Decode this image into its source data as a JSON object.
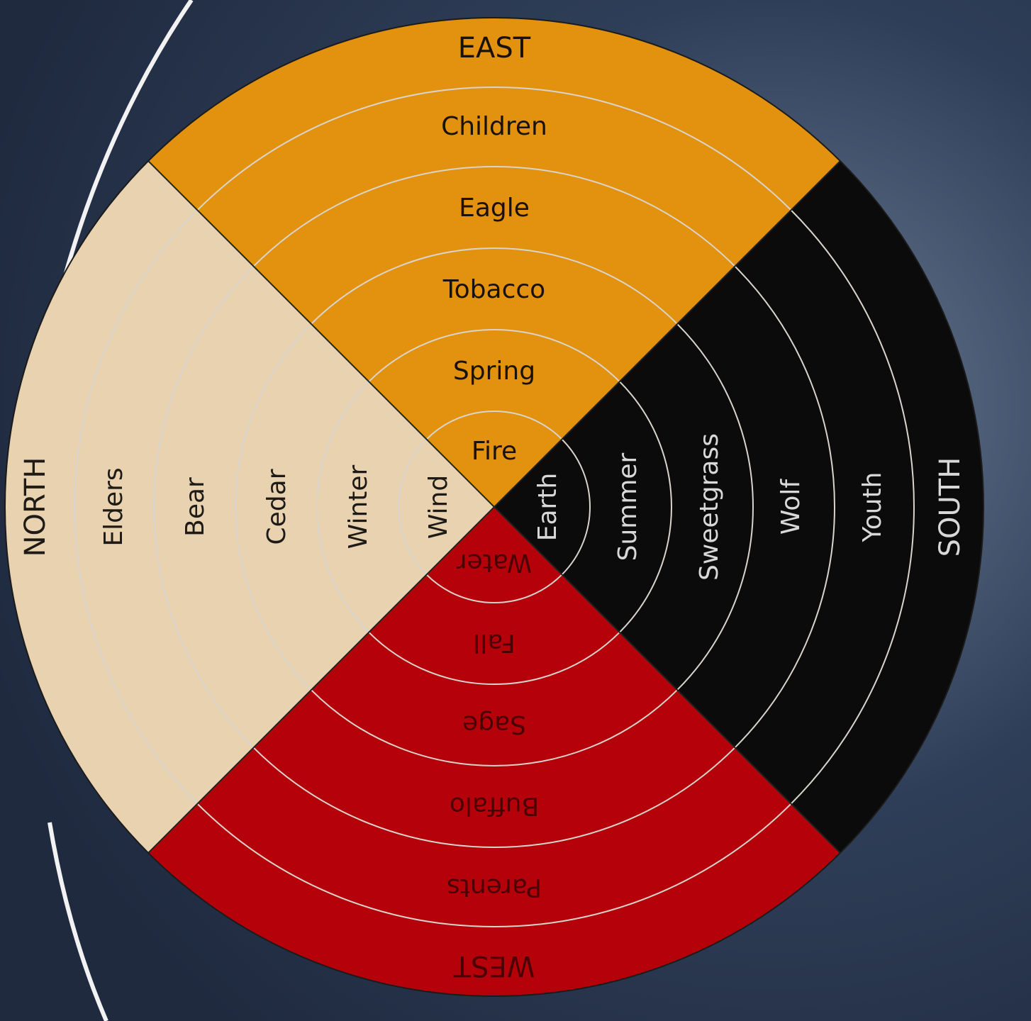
{
  "wheel": {
    "quadrants": [
      {
        "direction": "EAST",
        "rings": [
          "Fire",
          "Spring",
          "Tobacco",
          "Eagle",
          "Children"
        ],
        "color": "#e2920f",
        "text_color": "#1a1208"
      },
      {
        "direction": "SOUTH",
        "rings": [
          "Earth",
          "Summer",
          "Sweetgrass",
          "Wolf",
          "Youth"
        ],
        "color": "#0b0b0c",
        "text_color": "#d8d8d8"
      },
      {
        "direction": "WEST",
        "rings": [
          "Water",
          "Fall",
          "Sage",
          "Buffalo",
          "Parents"
        ],
        "color": "#b5020a",
        "text_color": "#4a0004"
      },
      {
        "direction": "NORTH",
        "rings": [
          "Wind",
          "Winter",
          "Cedar",
          "Bear",
          "Elders"
        ],
        "color": "#e9d2b0",
        "text_color": "#1e1a16"
      }
    ]
  }
}
